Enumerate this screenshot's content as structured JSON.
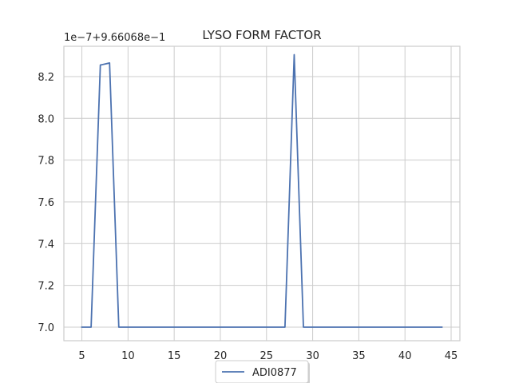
{
  "chart_data": {
    "type": "line",
    "title": "LYSO FORM FACTOR",
    "xlabel": "",
    "ylabel": "",
    "y_offset_label": "1e−7+9.66068e−1",
    "xlim": [
      3.05,
      45.95
    ],
    "ylim": [
      6.935,
      8.345
    ],
    "xticks": [
      5,
      10,
      15,
      20,
      25,
      30,
      35,
      40,
      45
    ],
    "yticks": [
      7.0,
      7.2,
      7.4,
      7.6,
      7.8,
      8.0,
      8.2
    ],
    "ytick_labels": [
      "7.0",
      "7.2",
      "7.4",
      "7.6",
      "7.8",
      "8.0",
      "8.2"
    ],
    "grid": true,
    "legend_position": "lower center",
    "series": [
      {
        "name": "ADI0877",
        "color": "#4c72b0",
        "x": [
          5,
          6,
          7,
          8,
          9,
          10,
          11,
          12,
          13,
          14,
          15,
          16,
          17,
          18,
          19,
          20,
          21,
          22,
          23,
          24,
          25,
          26,
          27,
          28,
          29,
          30,
          31,
          32,
          33,
          34,
          35,
          36,
          37,
          38,
          39,
          40,
          41,
          42,
          43,
          44
        ],
        "y": [
          7.0,
          7.0,
          8.255,
          8.265,
          7.0,
          7.0,
          7.0,
          7.0,
          7.0,
          7.0,
          7.0,
          7.0,
          7.0,
          7.0,
          7.0,
          7.0,
          7.0,
          7.0,
          7.0,
          7.0,
          7.0,
          7.0,
          7.0,
          8.305,
          7.0,
          7.0,
          7.0,
          7.0,
          7.0,
          7.0,
          7.0,
          7.0,
          7.0,
          7.0,
          7.0,
          7.0,
          7.0,
          7.0,
          7.0,
          7.0
        ]
      }
    ]
  }
}
